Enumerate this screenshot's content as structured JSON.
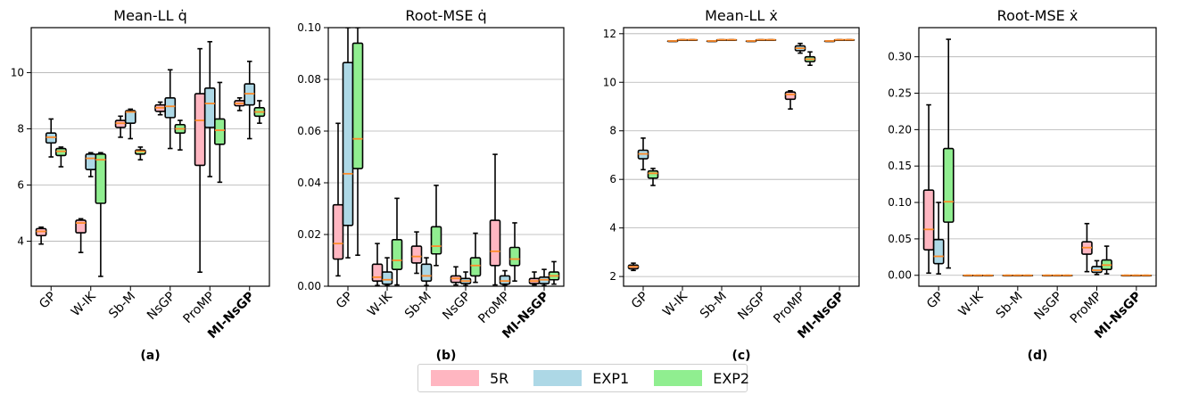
{
  "legend": {
    "items": [
      {
        "label": "5R",
        "color": "#ffb6c1"
      },
      {
        "label": "EXP1",
        "color": "#add8e6"
      },
      {
        "label": "EXP2",
        "color": "#90ee90"
      }
    ]
  },
  "colors": {
    "median": "#ff8c2a",
    "grid": "#b0b0b0",
    "edge": "#000000"
  },
  "chart_data": [
    {
      "type": "box",
      "title": "Mean-LL  q̇",
      "panel_label": "(a)",
      "categories": [
        "GP",
        "W-IK",
        "Sb-M",
        "NsGP",
        "ProMP",
        "MI-NsGP"
      ],
      "highlight_category": "MI-NsGP",
      "ylim": [
        2.4,
        11.6
      ],
      "yticks": [
        4,
        6,
        8,
        10
      ],
      "ytick_labels": [
        "4",
        "6",
        "8",
        "10"
      ],
      "grid": true,
      "series": [
        {
          "name": "5R",
          "boxes": [
            {
              "min": 3.9,
              "q1": 4.2,
              "median": 4.35,
              "q3": 4.45,
              "max": 4.5
            },
            {
              "min": 3.6,
              "q1": 4.3,
              "median": 4.65,
              "q3": 4.75,
              "max": 4.8
            },
            {
              "min": 7.7,
              "q1": 8.05,
              "median": 8.2,
              "q3": 8.3,
              "max": 8.45
            },
            {
              "min": 8.5,
              "q1": 8.62,
              "median": 8.75,
              "q3": 8.85,
              "max": 8.95
            },
            {
              "min": 2.9,
              "q1": 6.7,
              "median": 8.3,
              "q3": 9.25,
              "max": 10.85
            },
            {
              "min": 8.65,
              "q1": 8.82,
              "median": 8.9,
              "q3": 9.0,
              "max": 9.1
            }
          ]
        },
        {
          "name": "EXP1",
          "boxes": [
            {
              "min": 7.0,
              "q1": 7.5,
              "median": 7.7,
              "q3": 7.85,
              "max": 8.35
            },
            {
              "min": 6.3,
              "q1": 6.55,
              "median": 6.95,
              "q3": 7.1,
              "max": 7.15
            },
            {
              "min": 7.65,
              "q1": 8.2,
              "median": 8.6,
              "q3": 8.65,
              "max": 8.7
            },
            {
              "min": 7.3,
              "q1": 8.4,
              "median": 8.8,
              "q3": 9.1,
              "max": 10.1
            },
            {
              "min": 6.3,
              "q1": 8.05,
              "median": 8.9,
              "q3": 9.45,
              "max": 11.1
            },
            {
              "min": 7.65,
              "q1": 8.85,
              "median": 9.25,
              "q3": 9.6,
              "max": 10.4
            }
          ]
        },
        {
          "name": "EXP2",
          "boxes": [
            {
              "min": 6.65,
              "q1": 7.05,
              "median": 7.2,
              "q3": 7.3,
              "max": 7.35
            },
            {
              "min": 2.75,
              "q1": 5.35,
              "median": 6.9,
              "q3": 7.1,
              "max": 7.15
            },
            {
              "min": 6.9,
              "q1": 7.1,
              "median": 7.2,
              "q3": 7.25,
              "max": 7.35
            },
            {
              "min": 7.25,
              "q1": 7.85,
              "median": 8.0,
              "q3": 8.15,
              "max": 8.3
            },
            {
              "min": 6.1,
              "q1": 7.45,
              "median": 7.95,
              "q3": 8.35,
              "max": 9.65
            },
            {
              "min": 8.2,
              "q1": 8.45,
              "median": 8.6,
              "q3": 8.75,
              "max": 9.0
            }
          ]
        }
      ]
    },
    {
      "type": "box",
      "title": "Root-MSE  q̇",
      "panel_label": "(b)",
      "categories": [
        "GP",
        "W-IK",
        "Sb-M",
        "NsGP",
        "ProMP",
        "MI-NsGP"
      ],
      "highlight_category": "MI-NsGP",
      "ylim": [
        0.0,
        0.1
      ],
      "yticks": [
        0.0,
        0.02,
        0.04,
        0.06,
        0.08,
        0.1
      ],
      "ytick_labels": [
        "0.00",
        "0.02",
        "0.04",
        "0.06",
        "0.08",
        "0.10"
      ],
      "grid": true,
      "series": [
        {
          "name": "5R",
          "boxes": [
            {
              "min": 0.004,
              "q1": 0.0105,
              "median": 0.0165,
              "q3": 0.0315,
              "max": 0.063
            },
            {
              "min": 0.0003,
              "q1": 0.002,
              "median": 0.0035,
              "q3": 0.0085,
              "max": 0.0165
            },
            {
              "min": 0.005,
              "q1": 0.009,
              "median": 0.0115,
              "q3": 0.0155,
              "max": 0.021
            },
            {
              "min": 0.0005,
              "q1": 0.0015,
              "median": 0.003,
              "q3": 0.004,
              "max": 0.0075
            },
            {
              "min": 0.0005,
              "q1": 0.008,
              "median": 0.0135,
              "q3": 0.0255,
              "max": 0.051
            },
            {
              "min": 0.0005,
              "q1": 0.001,
              "median": 0.002,
              "q3": 0.003,
              "max": 0.0055
            }
          ]
        },
        {
          "name": "EXP1",
          "boxes": [
            {
              "min": 0.011,
              "q1": 0.0235,
              "median": 0.0435,
              "q3": 0.0865,
              "max": 0.1
            },
            {
              "min": 0.0002,
              "q1": 0.0008,
              "median": 0.0025,
              "q3": 0.0055,
              "max": 0.011
            },
            {
              "min": 0.0003,
              "q1": 0.002,
              "median": 0.004,
              "q3": 0.0085,
              "max": 0.011
            },
            {
              "min": 0.0003,
              "q1": 0.001,
              "median": 0.002,
              "q3": 0.003,
              "max": 0.0055
            },
            {
              "min": 0.0002,
              "q1": 0.0008,
              "median": 0.002,
              "q3": 0.004,
              "max": 0.006
            },
            {
              "min": 0.0003,
              "q1": 0.001,
              "median": 0.0025,
              "q3": 0.0035,
              "max": 0.0065
            }
          ]
        },
        {
          "name": "EXP2",
          "boxes": [
            {
              "min": 0.012,
              "q1": 0.0455,
              "median": 0.057,
              "q3": 0.094,
              "max": 0.1
            },
            {
              "min": 0.0005,
              "q1": 0.0065,
              "median": 0.01,
              "q3": 0.018,
              "max": 0.034
            },
            {
              "min": 0.008,
              "q1": 0.0125,
              "median": 0.0155,
              "q3": 0.023,
              "max": 0.039
            },
            {
              "min": 0.0015,
              "q1": 0.004,
              "median": 0.008,
              "q3": 0.011,
              "max": 0.0205
            },
            {
              "min": 0.002,
              "q1": 0.008,
              "median": 0.0105,
              "q3": 0.015,
              "max": 0.0245
            },
            {
              "min": 0.0008,
              "q1": 0.0025,
              "median": 0.004,
              "q3": 0.0055,
              "max": 0.0095
            }
          ]
        }
      ]
    },
    {
      "type": "box",
      "title": "Mean-LL  ẋ",
      "panel_label": "(c)",
      "categories": [
        "GP",
        "W-IK",
        "Sb-M",
        "NsGP",
        "ProMP",
        "MI-NsGP"
      ],
      "highlight_category": "MI-NsGP",
      "ylim": [
        1.6,
        12.25
      ],
      "yticks": [
        2,
        4,
        6,
        8,
        10,
        12
      ],
      "ytick_labels": [
        "2",
        "4",
        "6",
        "8",
        "10",
        "12"
      ],
      "grid": true,
      "series": [
        {
          "name": "5R",
          "boxes": [
            {
              "min": 2.25,
              "q1": 2.32,
              "median": 2.4,
              "q3": 2.47,
              "max": 2.55
            },
            {
              "min": 11.7,
              "q1": 11.7,
              "median": 11.7,
              "q3": 11.7,
              "max": 11.7
            },
            {
              "min": 11.7,
              "q1": 11.7,
              "median": 11.7,
              "q3": 11.7,
              "max": 11.7
            },
            {
              "min": 11.7,
              "q1": 11.7,
              "median": 11.7,
              "q3": 11.7,
              "max": 11.7
            },
            {
              "min": 8.9,
              "q1": 9.3,
              "median": 9.5,
              "q3": 9.6,
              "max": 9.65
            },
            {
              "min": 11.7,
              "q1": 11.7,
              "median": 11.7,
              "q3": 11.7,
              "max": 11.7
            }
          ]
        },
        {
          "name": "EXP1",
          "boxes": [
            {
              "min": 6.4,
              "q1": 6.85,
              "median": 7.05,
              "q3": 7.2,
              "max": 7.7
            },
            {
              "min": 11.75,
              "q1": 11.75,
              "median": 11.75,
              "q3": 11.75,
              "max": 11.75
            },
            {
              "min": 11.75,
              "q1": 11.75,
              "median": 11.75,
              "q3": 11.75,
              "max": 11.75
            },
            {
              "min": 11.75,
              "q1": 11.75,
              "median": 11.75,
              "q3": 11.75,
              "max": 11.75
            },
            {
              "min": 11.2,
              "q1": 11.3,
              "median": 11.4,
              "q3": 11.5,
              "max": 11.6
            },
            {
              "min": 11.75,
              "q1": 11.75,
              "median": 11.75,
              "q3": 11.75,
              "max": 11.75
            }
          ]
        },
        {
          "name": "EXP2",
          "boxes": [
            {
              "min": 5.75,
              "q1": 6.05,
              "median": 6.25,
              "q3": 6.35,
              "max": 6.45
            },
            {
              "min": 11.75,
              "q1": 11.75,
              "median": 11.75,
              "q3": 11.75,
              "max": 11.75
            },
            {
              "min": 11.75,
              "q1": 11.75,
              "median": 11.75,
              "q3": 11.75,
              "max": 11.75
            },
            {
              "min": 11.75,
              "q1": 11.75,
              "median": 11.75,
              "q3": 11.75,
              "max": 11.75
            },
            {
              "min": 10.7,
              "q1": 10.85,
              "median": 10.95,
              "q3": 11.05,
              "max": 11.25
            },
            {
              "min": 11.75,
              "q1": 11.75,
              "median": 11.75,
              "q3": 11.75,
              "max": 11.75
            }
          ]
        }
      ]
    },
    {
      "type": "box",
      "title": "Root-MSE  ẋ",
      "panel_label": "(d)",
      "categories": [
        "GP",
        "W-IK",
        "Sb-M",
        "NsGP",
        "ProMP",
        "MI-NsGP"
      ],
      "highlight_category": "MI-NsGP",
      "ylim": [
        -0.015,
        0.34
      ],
      "yticks": [
        0.0,
        0.05,
        0.1,
        0.15,
        0.2,
        0.25,
        0.3
      ],
      "ytick_labels": [
        "0.00",
        "0.05",
        "0.10",
        "0.15",
        "0.20",
        "0.25",
        "0.30"
      ],
      "grid": true,
      "series": [
        {
          "name": "5R",
          "boxes": [
            {
              "min": 0.003,
              "q1": 0.035,
              "median": 0.063,
              "q3": 0.117,
              "max": 0.234
            },
            {
              "min": 0.0,
              "q1": 0.0,
              "median": 0.0,
              "q3": 0.0,
              "max": 0.0
            },
            {
              "min": 0.0,
              "q1": 0.0,
              "median": 0.0,
              "q3": 0.0,
              "max": 0.0
            },
            {
              "min": 0.0,
              "q1": 0.0,
              "median": 0.0,
              "q3": 0.0,
              "max": 0.0
            },
            {
              "min": 0.005,
              "q1": 0.029,
              "median": 0.038,
              "q3": 0.046,
              "max": 0.071
            },
            {
              "min": 0.0,
              "q1": 0.0,
              "median": 0.0,
              "q3": 0.0,
              "max": 0.0
            }
          ]
        },
        {
          "name": "EXP1",
          "boxes": [
            {
              "min": 0.002,
              "q1": 0.016,
              "median": 0.026,
              "q3": 0.049,
              "max": 0.1
            },
            {
              "min": 0.0,
              "q1": 0.0,
              "median": 0.0,
              "q3": 0.0,
              "max": 0.0
            },
            {
              "min": 0.0,
              "q1": 0.0,
              "median": 0.0,
              "q3": 0.0,
              "max": 0.0
            },
            {
              "min": 0.0,
              "q1": 0.0,
              "median": 0.0,
              "q3": 0.0,
              "max": 0.0
            },
            {
              "min": 0.001,
              "q1": 0.004,
              "median": 0.007,
              "q3": 0.012,
              "max": 0.02
            },
            {
              "min": 0.0,
              "q1": 0.0,
              "median": 0.0,
              "q3": 0.0,
              "max": 0.0
            }
          ]
        },
        {
          "name": "EXP2",
          "boxes": [
            {
              "min": 0.01,
              "q1": 0.073,
              "median": 0.101,
              "q3": 0.174,
              "max": 0.324
            },
            {
              "min": 0.0,
              "q1": 0.0,
              "median": 0.0,
              "q3": 0.0,
              "max": 0.0
            },
            {
              "min": 0.0,
              "q1": 0.0,
              "median": 0.0,
              "q3": 0.0,
              "max": 0.0
            },
            {
              "min": 0.0,
              "q1": 0.0,
              "median": 0.0,
              "q3": 0.0,
              "max": 0.0
            },
            {
              "min": 0.002,
              "q1": 0.008,
              "median": 0.014,
              "q3": 0.021,
              "max": 0.04
            },
            {
              "min": 0.0,
              "q1": 0.0,
              "median": 0.0,
              "q3": 0.0,
              "max": 0.0
            }
          ]
        }
      ]
    }
  ]
}
